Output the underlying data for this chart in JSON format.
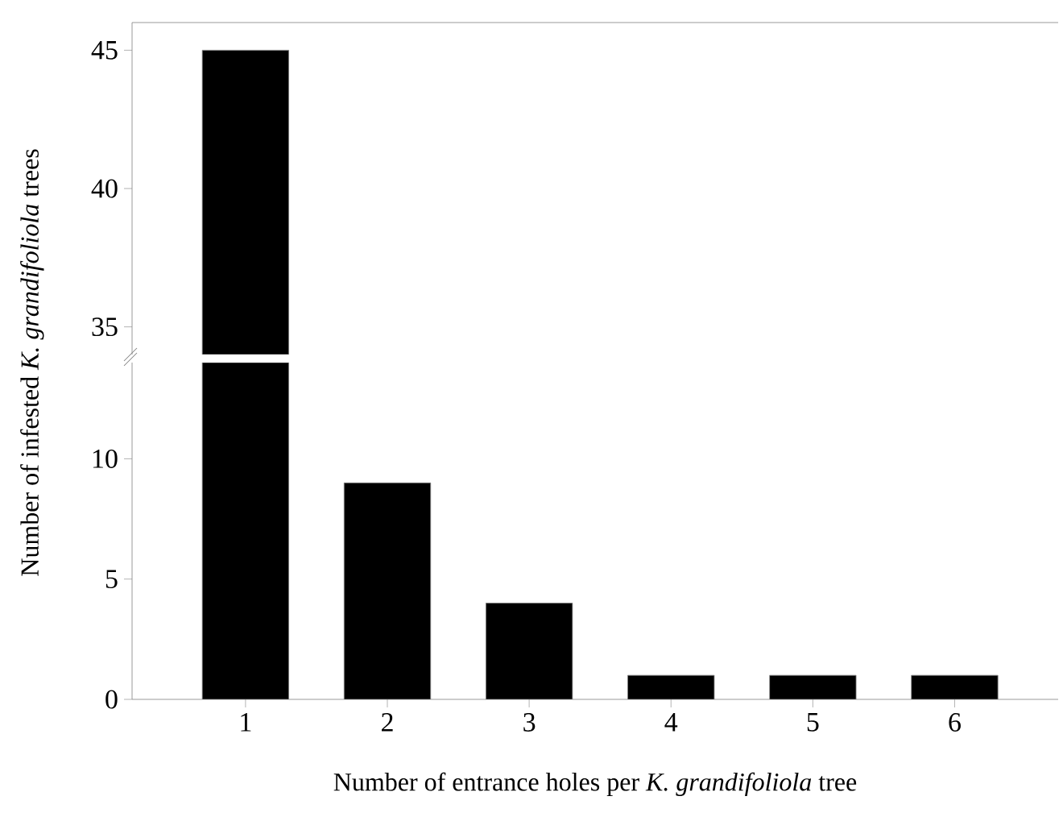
{
  "chart_data": [
    {
      "type": "bar",
      "categories": [
        "1",
        "2",
        "3",
        "4",
        "5",
        "6"
      ],
      "values": [
        45,
        null,
        null,
        null,
        null,
        null
      ],
      "color": "#000000",
      "ylim": [
        34,
        46
      ],
      "yticks": [
        35,
        40,
        45
      ],
      "tick_labels": "y"
    },
    {
      "type": "bar",
      "categories": [
        "1",
        "2",
        "3",
        "4",
        "5",
        "6"
      ],
      "values": [
        14,
        9,
        4,
        1,
        1,
        1
      ],
      "color": "#000000",
      "ylim": [
        0,
        14
      ],
      "yticks": [
        0,
        5,
        10
      ],
      "xlabel": "Number of entrance holes per *K. grandifoliola* tree",
      "ylabel": "Number of infested *K. grandifoliola* trees"
    }
  ]
}
